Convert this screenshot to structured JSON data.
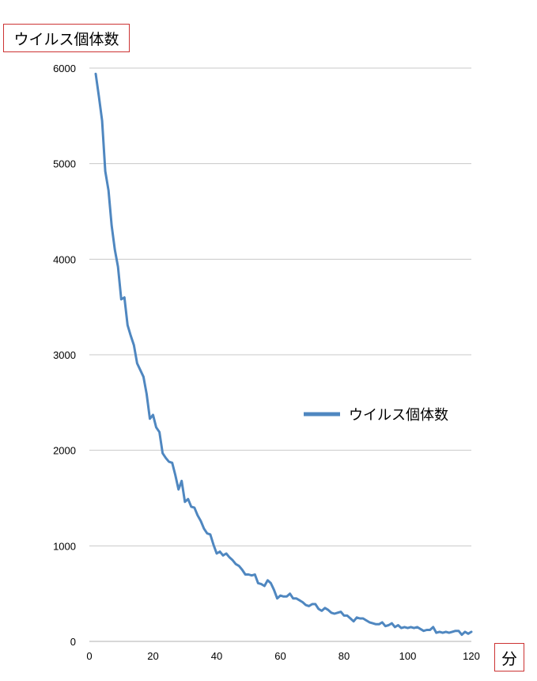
{
  "chart_data": {
    "type": "line",
    "ylabel": "ウイルス個体数",
    "xlabel": "分",
    "xlim": [
      0,
      120
    ],
    "ylim": [
      0,
      6000
    ],
    "x_ticks": [
      0,
      20,
      40,
      60,
      80,
      100,
      120
    ],
    "y_ticks": [
      0,
      1000,
      2000,
      3000,
      4000,
      5000,
      6000
    ],
    "grid": "horizontal",
    "legend_position": "right-middle",
    "series": [
      {
        "name": "ウイルス個体数",
        "color": "#4f87c0",
        "x": [
          2,
          3,
          4,
          5,
          6,
          7,
          8,
          9,
          10,
          11,
          12,
          13,
          14,
          15,
          16,
          17,
          18,
          19,
          20,
          21,
          22,
          23,
          24,
          25,
          26,
          27,
          28,
          29,
          30,
          31,
          32,
          33,
          34,
          35,
          36,
          37,
          38,
          39,
          40,
          41,
          42,
          43,
          44,
          45,
          46,
          47,
          48,
          49,
          50,
          51,
          52,
          53,
          54,
          55,
          56,
          57,
          58,
          59,
          60,
          61,
          62,
          63,
          64,
          65,
          66,
          67,
          68,
          69,
          70,
          71,
          72,
          73,
          74,
          75,
          76,
          77,
          78,
          79,
          80,
          81,
          82,
          83,
          84,
          85,
          86,
          87,
          88,
          89,
          90,
          91,
          92,
          93,
          94,
          95,
          96,
          97,
          98,
          99,
          100,
          101,
          102,
          103,
          104,
          105,
          106,
          107,
          108,
          109,
          110,
          111,
          112,
          113,
          114,
          115,
          116,
          117,
          118,
          119,
          120
        ],
        "values": [
          5940,
          5700,
          5450,
          4920,
          4720,
          4350,
          4100,
          3920,
          3580,
          3600,
          3310,
          3200,
          3100,
          2910,
          2840,
          2770,
          2590,
          2330,
          2370,
          2240,
          2190,
          1970,
          1920,
          1880,
          1870,
          1740,
          1590,
          1680,
          1460,
          1490,
          1410,
          1400,
          1320,
          1260,
          1180,
          1130,
          1120,
          1010,
          920,
          940,
          900,
          920,
          880,
          850,
          810,
          790,
          750,
          700,
          700,
          690,
          700,
          610,
          600,
          580,
          640,
          610,
          540,
          450,
          480,
          470,
          470,
          500,
          450,
          450,
          430,
          410,
          380,
          370,
          390,
          390,
          340,
          320,
          350,
          330,
          300,
          290,
          300,
          310,
          270,
          270,
          240,
          210,
          250,
          240,
          240,
          220,
          200,
          190,
          180,
          180,
          200,
          160,
          170,
          190,
          150,
          170,
          140,
          150,
          140,
          150,
          140,
          150,
          130,
          110,
          120,
          120,
          150,
          90,
          100,
          90,
          100,
          90,
          100,
          110,
          110,
          70,
          100,
          80,
          100
        ]
      }
    ]
  }
}
